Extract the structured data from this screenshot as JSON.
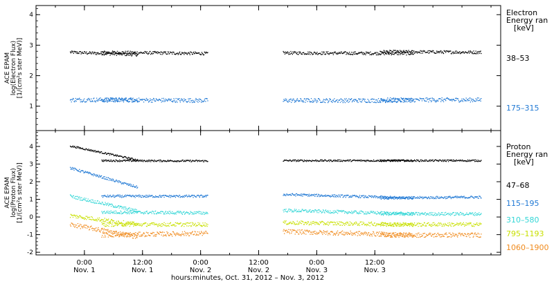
{
  "chart_data": [
    {
      "type": "scatter",
      "ylabel": [
        "ACE EPAM",
        "log(Electron Flux)",
        "[1/(cm²s ster MeV)]"
      ],
      "ylim": [
        0.2,
        4.3
      ],
      "yticks": [
        "1",
        "2",
        "3",
        "4"
      ],
      "legend_title": [
        "Electron",
        "Energy ran",
        "[keV]"
      ],
      "legend_placement": "right",
      "grid": false,
      "series": [
        {
          "name": "38–53",
          "color": "#000000",
          "segments": [
            [
              -3,
              2.78,
              2.7
            ],
            [
              3.5,
              2.78,
              2.74
            ],
            [
              41,
              2.76,
              2.74
            ],
            [
              61,
              2.8,
              2.78
            ]
          ]
        },
        {
          "name": "175–315",
          "color": "#1f78d4",
          "segments": [
            [
              -3,
              1.22,
              1.22
            ],
            [
              3.5,
              1.22,
              1.2
            ],
            [
              41,
              1.2,
              1.2
            ],
            [
              61,
              1.22,
              1.22
            ]
          ]
        }
      ]
    },
    {
      "type": "scatter",
      "ylabel": [
        "ACE EPAM",
        "log(Proton Flux)",
        "[1/(cm²s ster MeV)]"
      ],
      "ylim": [
        -2.15,
        4.9
      ],
      "yticks": [
        "-2",
        "-1",
        "0",
        "1",
        "2",
        "3",
        "4"
      ],
      "legend_title": [
        "Proton",
        "Energy ran",
        "[keV]"
      ],
      "legend_placement": "right",
      "grid": false,
      "series": [
        {
          "name": "47–68",
          "color": "#000000",
          "segments": [
            [
              -3,
              4.05,
              3.25
            ],
            [
              3.5,
              3.22,
              3.2
            ],
            [
              41,
              3.22,
              3.22
            ],
            [
              61,
              3.22,
              3.22
            ]
          ]
        },
        {
          "name": "115–195",
          "color": "#1f78d4",
          "segments": [
            [
              -3,
              2.8,
              1.7
            ],
            [
              3.5,
              1.2,
              1.2
            ],
            [
              41,
              1.3,
              1.1
            ],
            [
              61,
              1.1,
              1.15
            ]
          ]
        },
        {
          "name": "310–580",
          "color": "#33d6d6",
          "segments": [
            [
              -3,
              1.2,
              0.35
            ],
            [
              3.5,
              0.3,
              0.25
            ],
            [
              41,
              0.4,
              0.2
            ],
            [
              61,
              0.2,
              0.2
            ]
          ]
        },
        {
          "name": "795–1193",
          "color": "#c8e000",
          "segments": [
            [
              -3,
              0.1,
              -0.4
            ],
            [
              3.5,
              -0.4,
              -0.4
            ],
            [
              41,
              -0.3,
              -0.4
            ],
            [
              61,
              -0.4,
              -0.4
            ]
          ]
        },
        {
          "name": "1060–1900",
          "color": "#f08a1c",
          "segments": [
            [
              -3,
              -0.4,
              -1.1
            ],
            [
              3.5,
              -1.0,
              -0.9
            ],
            [
              41,
              -0.8,
              -1.0
            ],
            [
              61,
              -1.0,
              -1.0
            ]
          ]
        }
      ]
    }
  ],
  "x_axis": {
    "xlim": [
      -10,
      86
    ],
    "ticks": [
      {
        "h": 0,
        "time": "0:00",
        "day": "Nov. 1"
      },
      {
        "h": 12,
        "time": "12:00",
        "day": "Nov. 1"
      },
      {
        "h": 24,
        "time": "0:00",
        "day": "Nov. 2"
      },
      {
        "h": 36,
        "time": "12:00",
        "day": "Nov. 2"
      },
      {
        "h": 48,
        "time": "0:00",
        "day": "Nov. 3"
      },
      {
        "h": 60,
        "time": "12:00",
        "day": "Nov. 3"
      }
    ],
    "label": "hours:minutes, Oct. 31, 2012 – Nov.  3, 2012"
  }
}
